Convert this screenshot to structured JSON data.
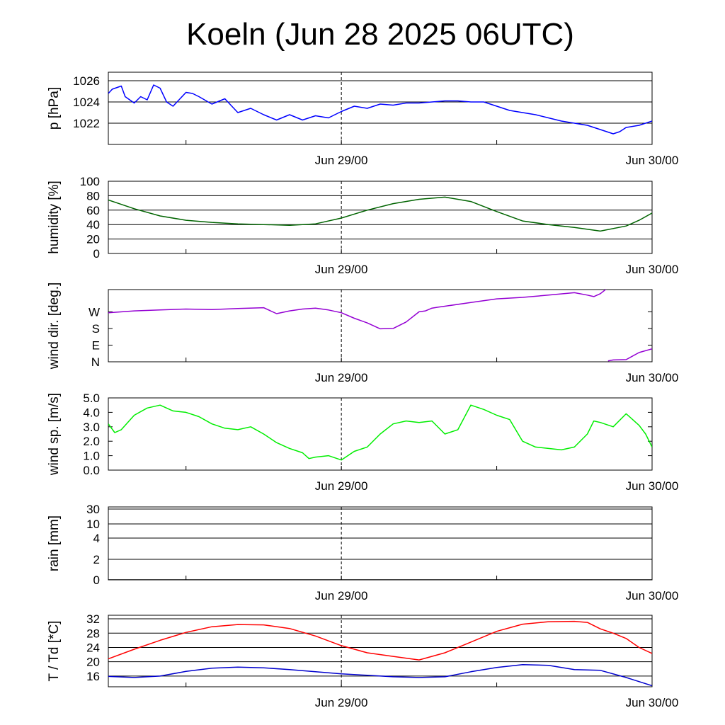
{
  "page": {
    "title": "Koeln (Jun 28 2025 06UTC)"
  },
  "chart_data": [
    {
      "type": "line",
      "panel": "pressure",
      "ylabel": "p [hPa]",
      "xticks": [
        "Jun 29/00",
        "Jun 30/00"
      ],
      "ylim": [
        1020.0,
        1026.8
      ],
      "yticks": [
        1022,
        1024,
        1026
      ],
      "grid": true,
      "series": [
        {
          "color": "#0000ff",
          "x": [
            6,
            6.3,
            7,
            7.3,
            8,
            8.5,
            9,
            9.5,
            10,
            10.5,
            11,
            12,
            12.5,
            13,
            14,
            15,
            16,
            17,
            18,
            19,
            20,
            21,
            22,
            23,
            24,
            25,
            26,
            27,
            28,
            29,
            30,
            31,
            32,
            33,
            34,
            35,
            36,
            37,
            38,
            39,
            40,
            41,
            42,
            43,
            44,
            45,
            45.5,
            46,
            47,
            48
          ],
          "y": [
            1024.8,
            1025.2,
            1025.5,
            1024.5,
            1023.9,
            1024.5,
            1024.2,
            1025.6,
            1025.3,
            1024.0,
            1023.6,
            1024.9,
            1024.8,
            1024.5,
            1023.8,
            1024.3,
            1023.0,
            1023.4,
            1022.8,
            1022.3,
            1022.8,
            1022.3,
            1022.7,
            1022.5,
            1023.1,
            1023.6,
            1023.4,
            1023.8,
            1023.7,
            1023.9,
            1023.9,
            1024.0,
            1024.1,
            1024.1,
            1024.0,
            1024.0,
            1023.6,
            1023.2,
            1023.0,
            1022.8,
            1022.5,
            1022.2,
            1022.0,
            1021.8,
            1021.4,
            1021.0,
            1021.2,
            1021.6,
            1021.8,
            1022.2
          ]
        }
      ]
    },
    {
      "type": "line",
      "panel": "humidity",
      "ylabel": "humidity [%]",
      "xticks": [
        "Jun 29/00",
        "Jun 30/00"
      ],
      "ylim": [
        0,
        100
      ],
      "yticks": [
        0,
        20,
        40,
        60,
        80,
        100
      ],
      "grid": true,
      "series": [
        {
          "color": "#006400",
          "x": [
            6,
            8,
            10,
            12,
            14,
            16,
            18,
            20,
            22,
            24,
            26,
            28,
            30,
            32,
            34,
            36,
            38,
            40,
            42,
            44,
            46,
            47,
            48
          ],
          "y": [
            74,
            62,
            52,
            46,
            43,
            41,
            40,
            39,
            41,
            49,
            60,
            69,
            75,
            78,
            72,
            58,
            45,
            40,
            36,
            31,
            38,
            46,
            56
          ]
        }
      ]
    },
    {
      "type": "line",
      "panel": "wind-direction",
      "ylabel": "wind dir. [deg.]",
      "xticks": [
        "Jun 29/00",
        "Jun 30/00"
      ],
      "ylim": [
        0,
        390
      ],
      "yticks": [
        "N",
        "E",
        "S",
        "W"
      ],
      "grid": false,
      "series": [
        {
          "color": "#9400d3",
          "x": [
            6,
            8,
            10,
            12,
            14,
            16,
            18,
            19,
            20,
            21,
            22,
            23,
            24,
            25,
            26,
            27,
            28,
            29,
            30,
            30.5,
            31,
            31.5,
            32,
            34,
            36,
            38,
            40,
            42,
            43,
            43.5,
            44,
            44.5
          ],
          "y": [
            265,
            275,
            280,
            285,
            282,
            288,
            292,
            260,
            275,
            285,
            290,
            280,
            265,
            235,
            210,
            178,
            180,
            215,
            270,
            275,
            290,
            295,
            300,
            320,
            340,
            348,
            360,
            373,
            360,
            352,
            368,
            395
          ]
        },
        {
          "color": "#9400d3",
          "x": [
            44.6,
            45,
            46,
            47,
            48
          ],
          "y": [
            5,
            10,
            12,
            50,
            70
          ]
        }
      ]
    },
    {
      "type": "line",
      "panel": "wind-speed",
      "ylabel": "wind sp. [m/s]",
      "xticks": [
        "Jun 29/00",
        "Jun 30/00"
      ],
      "ylim": [
        0,
        5.0
      ],
      "yticks": [
        "0.0",
        "1.0",
        "2.0",
        "3.0",
        "4.0",
        "5.0"
      ],
      "grid": false,
      "series": [
        {
          "color": "#00ee00",
          "x": [
            6,
            6.5,
            7,
            8,
            9,
            10,
            11,
            12,
            13,
            14,
            15,
            16,
            17,
            18,
            19,
            20,
            21,
            21.5,
            22,
            23,
            24,
            25,
            26,
            27,
            28,
            29,
            30,
            31,
            32,
            33,
            34,
            35,
            36,
            37,
            38,
            39,
            40,
            41,
            42,
            43,
            43.5,
            44,
            45,
            46,
            47,
            47.5,
            48
          ],
          "y": [
            3.2,
            2.6,
            2.8,
            3.8,
            4.3,
            4.5,
            4.1,
            4.0,
            3.7,
            3.2,
            2.9,
            2.8,
            3.0,
            2.5,
            1.9,
            1.5,
            1.2,
            0.8,
            0.9,
            1.0,
            0.7,
            1.3,
            1.6,
            2.5,
            3.2,
            3.4,
            3.3,
            3.4,
            2.5,
            2.8,
            4.5,
            4.2,
            3.8,
            3.5,
            2.0,
            1.6,
            1.5,
            1.4,
            1.6,
            2.5,
            3.4,
            3.3,
            3.0,
            3.9,
            3.1,
            2.5,
            1.6
          ]
        }
      ]
    },
    {
      "type": "line",
      "panel": "rain",
      "ylabel": "rain [mm]",
      "xticks": [
        "Jun 29/00",
        "Jun 30/00"
      ],
      "yticks": [
        "0",
        "2",
        "4",
        "10",
        "30"
      ],
      "grid": true,
      "series": [
        {
          "color": "#000000",
          "x": [
            6,
            48
          ],
          "y": [
            0,
            0
          ]
        }
      ]
    },
    {
      "type": "line",
      "panel": "temperature",
      "ylabel": "T / Td [*C]",
      "xticks": [
        "Jun 29/00",
        "Jun 30/00"
      ],
      "ylim": [
        13,
        33
      ],
      "yticks": [
        16,
        20,
        24,
        28,
        32
      ],
      "grid": true,
      "series": [
        {
          "color": "#ff0000",
          "x": [
            6,
            8,
            10,
            12,
            14,
            16,
            18,
            20,
            22,
            24,
            26,
            28,
            30,
            32,
            34,
            36,
            38,
            40,
            42,
            43,
            44,
            45,
            46,
            47,
            48
          ],
          "y": [
            20.8,
            23.5,
            26.0,
            28.2,
            29.8,
            30.4,
            30.3,
            29.3,
            27.2,
            24.5,
            22.5,
            21.5,
            20.5,
            22.5,
            25.5,
            28.5,
            30.5,
            31.2,
            31.3,
            31.0,
            29.2,
            28.0,
            26.5,
            24.0,
            22.3
          ]
        },
        {
          "color": "#0000cd",
          "x": [
            6,
            8,
            10,
            12,
            14,
            16,
            18,
            20,
            22,
            24,
            26,
            28,
            30,
            32,
            34,
            36,
            38,
            40,
            42,
            44,
            46,
            48
          ],
          "y": [
            15.9,
            15.6,
            16.0,
            17.3,
            18.2,
            18.5,
            18.3,
            17.8,
            17.2,
            16.6,
            16.2,
            15.8,
            15.6,
            15.8,
            17.2,
            18.4,
            19.2,
            19.0,
            17.8,
            17.6,
            15.6,
            13.3
          ]
        }
      ]
    }
  ]
}
